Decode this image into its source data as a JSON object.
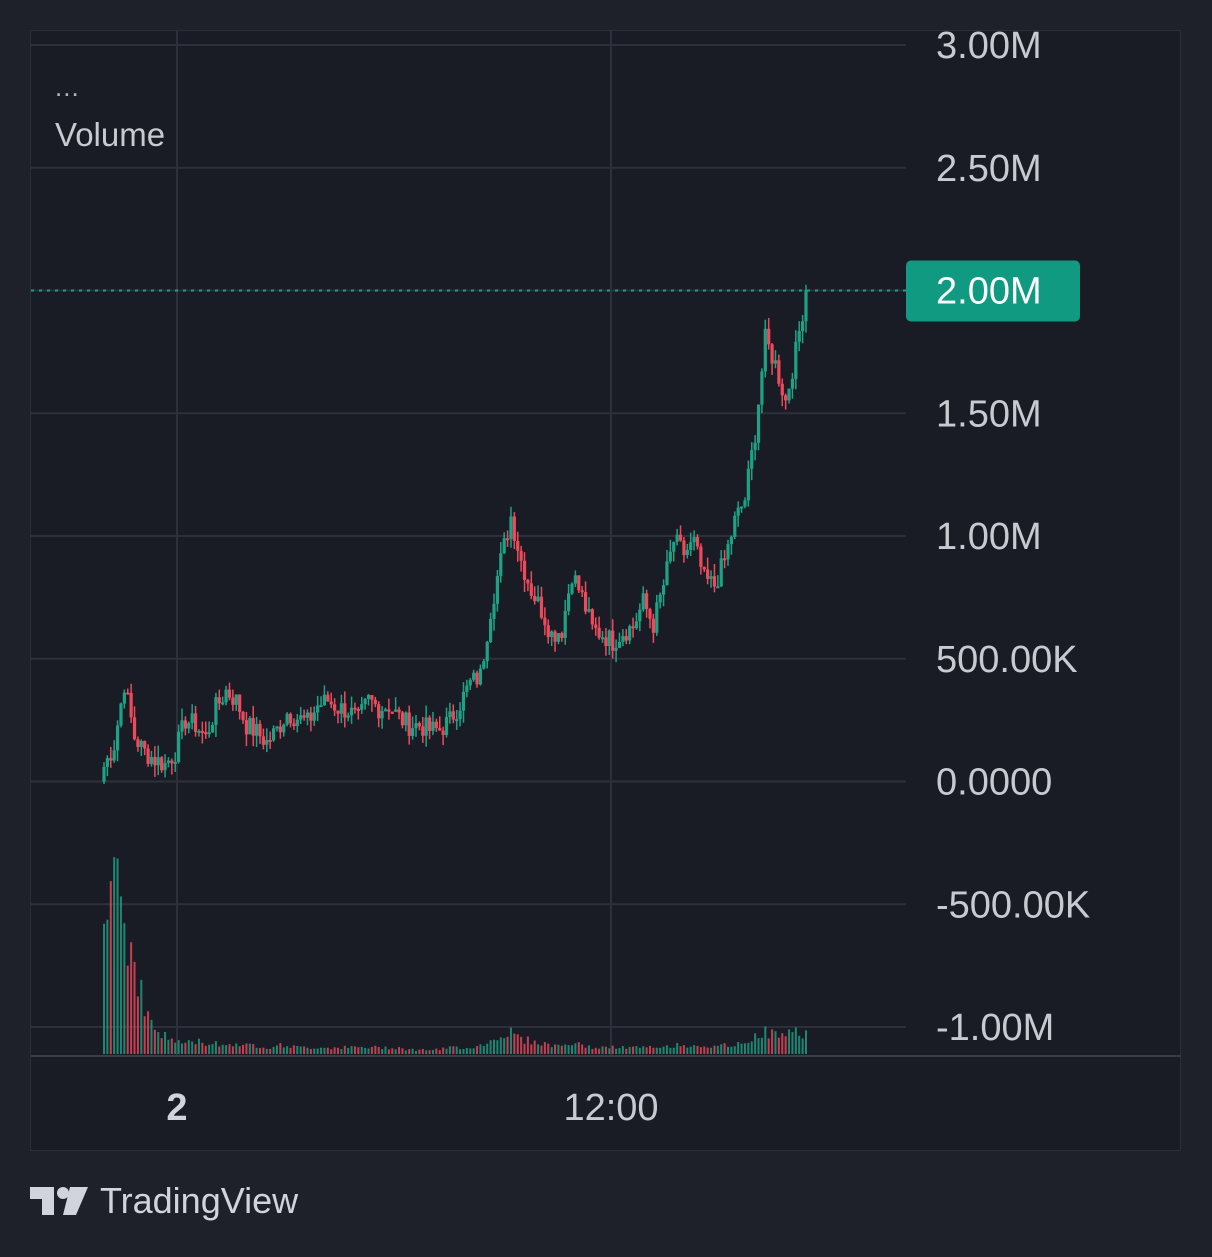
{
  "legend": {
    "overflow": "...",
    "title": "Volume"
  },
  "brand": {
    "name": "TradingView",
    "icon": "tradingview-logo-icon"
  },
  "colors": {
    "background": "#1a1c25",
    "grid": "#2d303a",
    "text": "#c8cad1",
    "up": "#1ea285",
    "down": "#ef4a5c",
    "current_price_badge": "#109a82"
  },
  "chart_data": {
    "type": "candlestick",
    "y_axis": {
      "ticks": [
        "3.00M",
        "2.50M",
        "2.00M",
        "1.50M",
        "1.00M",
        "500.00K",
        "0.0000",
        "-500.00K",
        "-1.00M"
      ],
      "tick_values": [
        3000000,
        2500000,
        2000000,
        1500000,
        1000000,
        500000,
        0,
        -500000,
        -1000000
      ],
      "range": [
        -1000000,
        3000000
      ]
    },
    "x_axis": {
      "ticks": [
        "2",
        "12:00"
      ]
    },
    "current_price": {
      "value": 2000000,
      "label": "2.00M"
    },
    "series": [
      {
        "name": "Volume",
        "close_path": [
          60000,
          150000,
          400000,
          180000,
          120000,
          90000,
          70000,
          120000,
          250000,
          230000,
          180000,
          300000,
          370000,
          330000,
          230000,
          200000,
          160000,
          210000,
          280000,
          260000,
          240000,
          310000,
          330000,
          300000,
          290000,
          250000,
          330000,
          300000,
          310000,
          260000,
          230000,
          230000,
          210000,
          210000,
          250000,
          320000,
          400000,
          430000,
          700000,
          900000,
          1080000,
          900000,
          780000,
          700000,
          600000,
          620000,
          850000,
          750000,
          620000,
          600000,
          570000,
          610000,
          630000,
          730000,
          640000,
          800000,
          980000,
          930000,
          970000,
          820000,
          800000,
          900000,
          1060000,
          1150000,
          1420000,
          1800000,
          1700000,
          1550000,
          1750000,
          2000000
        ],
        "volume_profile": [
          0.55,
          1.0,
          0.6,
          0.45,
          0.2,
          0.12,
          0.08,
          0.06,
          0.05,
          0.06,
          0.05,
          0.05,
          0.04,
          0.05,
          0.04,
          0.04,
          0.03,
          0.04,
          0.04,
          0.03,
          0.03,
          0.03,
          0.03,
          0.03,
          0.03,
          0.03,
          0.03,
          0.03,
          0.03,
          0.03,
          0.02,
          0.02,
          0.02,
          0.02,
          0.03,
          0.03,
          0.03,
          0.04,
          0.06,
          0.09,
          0.1,
          0.07,
          0.06,
          0.05,
          0.04,
          0.04,
          0.05,
          0.04,
          0.03,
          0.03,
          0.03,
          0.03,
          0.03,
          0.03,
          0.03,
          0.03,
          0.04,
          0.04,
          0.04,
          0.04,
          0.03,
          0.04,
          0.04,
          0.05,
          0.09,
          0.1,
          0.09,
          0.09,
          0.1,
          0.1
        ],
        "volume_peak": 1000000
      }
    ]
  }
}
